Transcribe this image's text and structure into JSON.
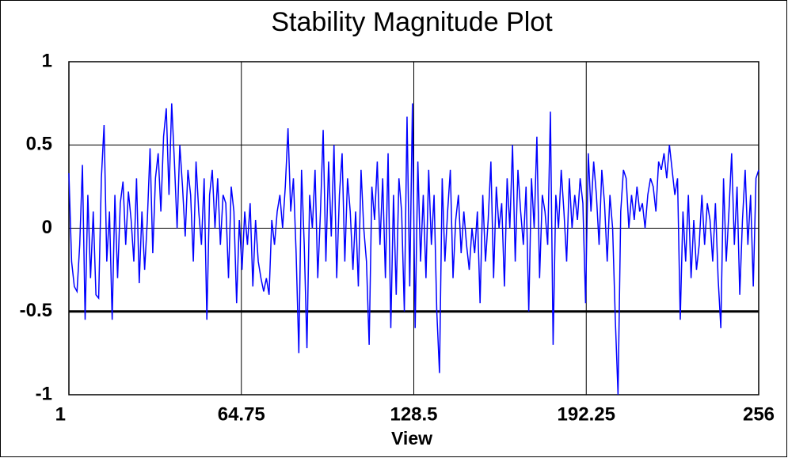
{
  "chart_data": {
    "type": "line",
    "title": "Stability Magnitude Plot",
    "x_label": "View",
    "x": [
      1,
      2,
      3,
      4,
      5,
      6,
      7,
      8,
      9,
      10,
      11,
      12,
      13,
      14,
      15,
      16,
      17,
      18,
      19,
      20,
      21,
      22,
      23,
      24,
      25,
      26,
      27,
      28,
      29,
      30,
      31,
      32,
      33,
      34,
      35,
      36,
      37,
      38,
      39,
      40,
      41,
      42,
      43,
      44,
      45,
      46,
      47,
      48,
      49,
      50,
      51,
      52,
      53,
      54,
      55,
      56,
      57,
      58,
      59,
      60,
      61,
      62,
      63,
      64,
      65,
      66,
      67,
      68,
      69,
      70,
      71,
      72,
      73,
      74,
      75,
      76,
      77,
      78,
      79,
      80,
      81,
      82,
      83,
      84,
      85,
      86,
      87,
      88,
      89,
      90,
      91,
      92,
      93,
      94,
      95,
      96,
      97,
      98,
      99,
      100,
      101,
      102,
      103,
      104,
      105,
      106,
      107,
      108,
      109,
      110,
      111,
      112,
      113,
      114,
      115,
      116,
      117,
      118,
      119,
      120,
      121,
      122,
      123,
      124,
      125,
      126,
      127,
      128,
      129,
      130,
      131,
      132,
      133,
      134,
      135,
      136,
      137,
      138,
      139,
      140,
      141,
      142,
      143,
      144,
      145,
      146,
      147,
      148,
      149,
      150,
      151,
      152,
      153,
      154,
      155,
      156,
      157,
      158,
      159,
      160,
      161,
      162,
      163,
      164,
      165,
      166,
      167,
      168,
      169,
      170,
      171,
      172,
      173,
      174,
      175,
      176,
      177,
      178,
      179,
      180,
      181,
      182,
      183,
      184,
      185,
      186,
      187,
      188,
      189,
      190,
      191,
      192,
      193,
      194,
      195,
      196,
      197,
      198,
      199,
      200,
      201,
      202,
      203,
      204,
      205,
      206,
      207,
      208,
      209,
      210,
      211,
      212,
      213,
      214,
      215,
      216,
      217,
      218,
      219,
      220,
      221,
      222,
      223,
      224,
      225,
      226,
      227,
      228,
      229,
      230,
      231,
      232,
      233,
      234,
      235,
      236,
      237,
      238,
      239,
      240,
      241,
      242,
      243,
      244,
      245,
      246,
      247,
      248,
      249,
      250,
      251,
      252,
      253,
      254,
      255,
      256
    ],
    "values": [
      0.33,
      -0.2,
      -0.35,
      -0.38,
      -0.1,
      0.38,
      -0.55,
      0.2,
      -0.3,
      0.1,
      -0.4,
      -0.42,
      0.3,
      0.62,
      -0.2,
      0.1,
      -0.55,
      0.2,
      -0.3,
      0.15,
      0.28,
      -0.1,
      0.22,
      0.05,
      -0.2,
      0.3,
      -0.33,
      0.1,
      -0.25,
      0.05,
      0.48,
      -0.15,
      0.3,
      0.45,
      0.1,
      0.55,
      0.72,
      0.2,
      0.75,
      0.4,
      0.0,
      0.5,
      0.25,
      -0.05,
      0.35,
      0.2,
      -0.2,
      0.4,
      0.1,
      -0.1,
      0.3,
      -0.55,
      0.2,
      0.35,
      0.0,
      0.3,
      -0.1,
      0.2,
      0.15,
      -0.3,
      0.25,
      0.1,
      -0.45,
      0.05,
      -0.25,
      0.1,
      -0.1,
      0.15,
      -0.35,
      0.05,
      -0.2,
      -0.3,
      -0.38,
      -0.3,
      -0.4,
      0.05,
      -0.1,
      0.1,
      0.2,
      0.0,
      0.25,
      0.6,
      0.1,
      0.3,
      -0.15,
      -0.75,
      0.35,
      -0.1,
      -0.72,
      0.2,
      0.0,
      0.35,
      -0.3,
      0.1,
      0.59,
      -0.2,
      0.4,
      -0.05,
      0.5,
      -0.3,
      0.2,
      0.45,
      -0.2,
      0.3,
      0.1,
      -0.25,
      0.1,
      -0.35,
      0.35,
      0.0,
      -0.2,
      -0.7,
      0.25,
      0.05,
      0.4,
      -0.1,
      0.3,
      -0.3,
      0.45,
      -0.6,
      0.2,
      -0.4,
      0.3,
      0.1,
      -0.5,
      0.67,
      -0.35,
      0.75,
      -0.6,
      0.4,
      -0.2,
      0.2,
      -0.3,
      0.35,
      -0.1,
      0.2,
      -0.5,
      -0.87,
      0.3,
      -0.2,
      0.1,
      0.35,
      -0.3,
      0.05,
      0.2,
      -0.15,
      0.1,
      -0.1,
      -0.25,
      0.0,
      -0.15,
      0.1,
      -0.45,
      0.2,
      -0.2,
      0.05,
      0.4,
      -0.3,
      0.25,
      0.0,
      0.15,
      -0.35,
      0.3,
      0.0,
      0.5,
      -0.2,
      0.35,
      0.1,
      -0.1,
      0.25,
      -0.5,
      0.3,
      0.0,
      0.55,
      -0.3,
      0.2,
      0.1,
      -0.1,
      0.7,
      -0.7,
      0.2,
      0.0,
      0.35,
      0.1,
      -0.2,
      0.3,
      0.0,
      0.2,
      0.05,
      0.3,
      0.15,
      -0.45,
      0.45,
      0.1,
      0.4,
      0.2,
      -0.1,
      0.35,
      0.15,
      -0.2,
      0.2,
      0.0,
      -0.55,
      -1.0,
      0.1,
      0.35,
      0.3,
      0.0,
      0.2,
      0.05,
      0.25,
      0.1,
      0.15,
      0.0,
      0.2,
      0.3,
      0.25,
      0.1,
      0.4,
      0.35,
      0.45,
      0.3,
      0.5,
      0.35,
      0.2,
      0.3,
      -0.55,
      0.1,
      -0.2,
      0.2,
      -0.3,
      0.05,
      -0.25,
      -0.1,
      0.2,
      -0.1,
      0.15,
      0.05,
      -0.2,
      0.15,
      -0.3,
      -0.6,
      0.3,
      -0.2,
      0.1,
      0.45,
      -0.1,
      0.25,
      -0.4,
      0.05,
      0.35,
      -0.1,
      0.2,
      -0.35,
      0.3,
      0.35
    ],
    "color": "#0000ff",
    "xlim": [
      1,
      256
    ],
    "xticks": [
      1,
      64.75,
      128.5,
      192.25,
      256
    ],
    "ylim": [
      -1,
      1
    ],
    "yticks": [
      -1,
      -0.5,
      0,
      0.5,
      1
    ],
    "grid": true,
    "threshold": -0.5
  }
}
